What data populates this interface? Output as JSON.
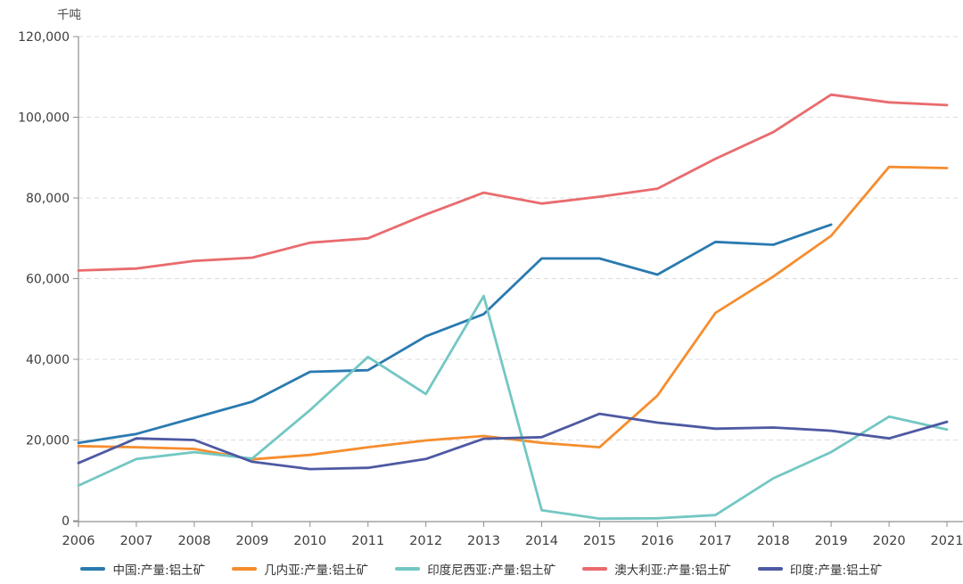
{
  "chart_data": {
    "type": "line",
    "unit": "千吨",
    "x": [
      2006,
      2007,
      2008,
      2009,
      2010,
      2011,
      2012,
      2013,
      2014,
      2015,
      2016,
      2017,
      2018,
      2019,
      2020,
      2021
    ],
    "ylim": [
      0,
      120000
    ],
    "y_tick_labels": [
      "0",
      "20,000",
      "40,000",
      "60,000",
      "80,000",
      "100,000",
      "120,000"
    ],
    "grid": "horizontal-dashed",
    "legend_position": "bottom-center",
    "colors": {
      "axis_line": "#8f8f8f",
      "grid_line": "#dcdcdc",
      "tick_text": "#3d3d3d",
      "legend_text": "#333333"
    },
    "series": [
      {
        "id": "china",
        "name": "中国:产量:铝土矿",
        "color": "#2a7ab0",
        "values": [
          19300,
          21500,
          25500,
          29500,
          36900,
          37300,
          45700,
          51200,
          65000,
          65000,
          61000,
          69100,
          68400,
          73400,
          null,
          null
        ]
      },
      {
        "id": "guinea",
        "name": "几内亚:产量:铝土矿",
        "color": "#f68d2e",
        "values": [
          18500,
          18200,
          17800,
          15200,
          16300,
          18200,
          19900,
          21000,
          19300,
          18200,
          31000,
          51500,
          60500,
          70600,
          87700,
          87400
        ]
      },
      {
        "id": "indonesia",
        "name": "印度尼西亚:产量:铝土矿",
        "color": "#73c7c3",
        "values": [
          8700,
          15300,
          17000,
          15400,
          27400,
          40600,
          31400,
          55700,
          2600,
          500,
          600,
          1400,
          10500,
          17000,
          25800,
          22600
        ]
      },
      {
        "id": "australia",
        "name": "澳大利亚:产量:铝土矿",
        "color": "#e96b6e",
        "values": [
          62000,
          62500,
          64400,
          65200,
          68900,
          70000,
          75900,
          81300,
          78600,
          80300,
          82300,
          89700,
          96300,
          105600,
          103700,
          103000
        ]
      },
      {
        "id": "india",
        "name": "印度:产量:铝土矿",
        "color": "#4d59a2",
        "values": [
          14300,
          20400,
          20000,
          14600,
          12800,
          13100,
          15300,
          20300,
          20700,
          26500,
          24300,
          22800,
          23100,
          22300,
          20400,
          24500
        ]
      }
    ]
  }
}
